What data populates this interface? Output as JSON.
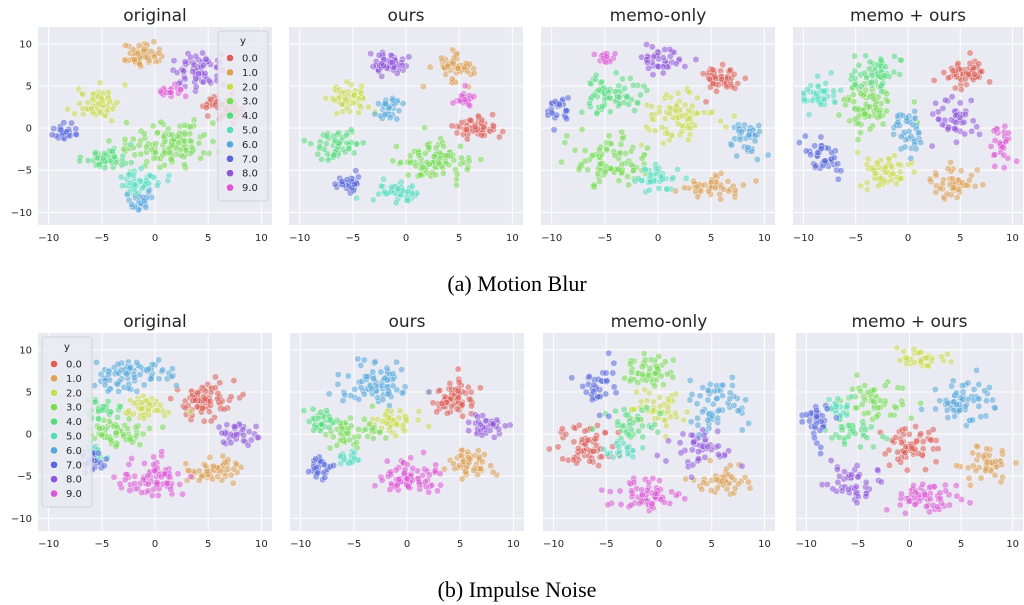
{
  "figure": {
    "captions": [
      "(a) Motion Blur",
      "(b) Impulse Noise"
    ]
  },
  "palette": [
    "#db5f57",
    "#dba157",
    "#c8db57",
    "#79db57",
    "#57db80",
    "#57dbbf",
    "#57a8db",
    "#5767db",
    "#8f57db",
    "#db57d6"
  ],
  "legend": {
    "title": "y",
    "labels": [
      "0.0",
      "1.0",
      "2.0",
      "3.0",
      "4.0",
      "5.0",
      "6.0",
      "7.0",
      "8.0",
      "9.0"
    ]
  },
  "chart_data": [
    {
      "type": "scatter",
      "row": "Motion Blur",
      "title": "original",
      "xticks": [
        -10,
        -5,
        0,
        5,
        10
      ],
      "yticks": [
        10,
        5,
        0,
        -5,
        -10
      ],
      "xlim": [
        -11,
        11
      ],
      "ylim": [
        -11.5,
        12
      ],
      "legend": "top-right",
      "grid": true,
      "clusters": [
        {
          "label": "0.0",
          "center": [
            6.5,
            2.5
          ],
          "spread": [
            1.6,
            1.4
          ],
          "n": 60
        },
        {
          "label": "1.0",
          "center": [
            -1.5,
            8.5
          ],
          "spread": [
            1.5,
            1.2
          ],
          "n": 60
        },
        {
          "label": "2.0",
          "center": [
            -5.5,
            3.0
          ],
          "spread": [
            1.8,
            1.6
          ],
          "n": 60
        },
        {
          "label": "3.0",
          "center": [
            1.5,
            -2.0
          ],
          "spread": [
            4.0,
            2.5
          ],
          "n": 110
        },
        {
          "label": "4.0",
          "center": [
            -4.5,
            -3.5
          ],
          "spread": [
            2.0,
            1.2
          ],
          "n": 45
        },
        {
          "label": "5.0",
          "center": [
            -1.5,
            -6.5
          ],
          "spread": [
            2.0,
            1.2
          ],
          "n": 45
        },
        {
          "label": "6.0",
          "center": [
            -1.5,
            -8.5
          ],
          "spread": [
            1.2,
            1.0
          ],
          "n": 25
        },
        {
          "label": "7.0",
          "center": [
            -8.5,
            -0.5
          ],
          "spread": [
            1.2,
            1.0
          ],
          "n": 25
        },
        {
          "label": "8.0",
          "center": [
            4.0,
            7.0
          ],
          "spread": [
            2.0,
            1.8
          ],
          "n": 60
        },
        {
          "label": "9.0",
          "center": [
            1.5,
            4.5
          ],
          "spread": [
            1.0,
            0.8
          ],
          "n": 20
        }
      ]
    },
    {
      "type": "scatter",
      "row": "Motion Blur",
      "title": "ours",
      "xticks": [
        -10,
        -5,
        0,
        5,
        10
      ],
      "yticks": [],
      "xlim": [
        -11,
        11
      ],
      "ylim": [
        -11.5,
        12
      ],
      "grid": true,
      "clusters": [
        {
          "label": "0.0",
          "center": [
            6.5,
            0.0
          ],
          "spread": [
            1.8,
            1.2
          ],
          "n": 55
        },
        {
          "label": "1.0",
          "center": [
            4.5,
            7.0
          ],
          "spread": [
            1.6,
            1.4
          ],
          "n": 55
        },
        {
          "label": "2.0",
          "center": [
            -5.5,
            3.5
          ],
          "spread": [
            1.6,
            1.4
          ],
          "n": 55
        },
        {
          "label": "3.0",
          "center": [
            2.5,
            -4.0
          ],
          "spread": [
            3.0,
            2.0
          ],
          "n": 90
        },
        {
          "label": "4.0",
          "center": [
            -6.5,
            -2.0
          ],
          "spread": [
            2.0,
            1.5
          ],
          "n": 50
        },
        {
          "label": "5.0",
          "center": [
            -1.0,
            -7.5
          ],
          "spread": [
            2.0,
            1.2
          ],
          "n": 45
        },
        {
          "label": "6.0",
          "center": [
            -1.5,
            2.5
          ],
          "spread": [
            1.2,
            1.2
          ],
          "n": 30
        },
        {
          "label": "7.0",
          "center": [
            -5.5,
            -6.5
          ],
          "spread": [
            1.2,
            1.0
          ],
          "n": 30
        },
        {
          "label": "8.0",
          "center": [
            -1.5,
            7.5
          ],
          "spread": [
            1.6,
            1.2
          ],
          "n": 55
        },
        {
          "label": "9.0",
          "center": [
            5.5,
            3.5
          ],
          "spread": [
            1.0,
            0.8
          ],
          "n": 20
        }
      ]
    },
    {
      "type": "scatter",
      "row": "Motion Blur",
      "title": "memo-only",
      "xticks": [
        -10,
        -5,
        0,
        5,
        10
      ],
      "yticks": [],
      "xlim": [
        -11,
        11
      ],
      "ylim": [
        -11.5,
        12
      ],
      "grid": true,
      "clusters": [
        {
          "label": "0.0",
          "center": [
            6.0,
            6.0
          ],
          "spread": [
            1.8,
            1.5
          ],
          "n": 50
        },
        {
          "label": "1.0",
          "center": [
            5.0,
            -7.0
          ],
          "spread": [
            2.5,
            1.2
          ],
          "n": 45
        },
        {
          "label": "2.0",
          "center": [
            2.0,
            1.5
          ],
          "spread": [
            3.0,
            2.5
          ],
          "n": 80
        },
        {
          "label": "3.0",
          "center": [
            -4.5,
            -4.0
          ],
          "spread": [
            3.0,
            2.5
          ],
          "n": 85
        },
        {
          "label": "4.0",
          "center": [
            -4.5,
            4.0
          ],
          "spread": [
            2.5,
            2.0
          ],
          "n": 65
        },
        {
          "label": "5.0",
          "center": [
            0.0,
            -6.0
          ],
          "spread": [
            2.0,
            1.5
          ],
          "n": 40
        },
        {
          "label": "6.0",
          "center": [
            8.5,
            -1.0
          ],
          "spread": [
            1.2,
            2.0
          ],
          "n": 40
        },
        {
          "label": "7.0",
          "center": [
            -9.5,
            2.5
          ],
          "spread": [
            1.0,
            1.5
          ],
          "n": 25
        },
        {
          "label": "8.0",
          "center": [
            0.5,
            8.0
          ],
          "spread": [
            1.8,
            1.5
          ],
          "n": 40
        },
        {
          "label": "9.0",
          "center": [
            -5.0,
            8.5
          ],
          "spread": [
            1.0,
            0.8
          ],
          "n": 15
        }
      ]
    },
    {
      "type": "scatter",
      "row": "Motion Blur",
      "title": "memo + ours",
      "xticks": [
        -10,
        -5,
        0,
        5,
        10
      ],
      "yticks": [],
      "xlim": [
        -11,
        11
      ],
      "ylim": [
        -11.5,
        12
      ],
      "grid": true,
      "clusters": [
        {
          "label": "0.0",
          "center": [
            5.5,
            6.5
          ],
          "spread": [
            2.0,
            1.5
          ],
          "n": 55
        },
        {
          "label": "1.0",
          "center": [
            4.5,
            -6.5
          ],
          "spread": [
            2.0,
            1.5
          ],
          "n": 45
        },
        {
          "label": "2.0",
          "center": [
            -2.5,
            -5.0
          ],
          "spread": [
            2.5,
            2.0
          ],
          "n": 60
        },
        {
          "label": "3.0",
          "center": [
            -4.0,
            2.5
          ],
          "spread": [
            2.5,
            3.0
          ],
          "n": 80
        },
        {
          "label": "4.0",
          "center": [
            -3.0,
            6.5
          ],
          "spread": [
            2.5,
            1.8
          ],
          "n": 55
        },
        {
          "label": "5.0",
          "center": [
            -8.5,
            4.0
          ],
          "spread": [
            1.5,
            2.0
          ],
          "n": 40
        },
        {
          "label": "6.0",
          "center": [
            0.0,
            -0.5
          ],
          "spread": [
            1.5,
            2.5
          ],
          "n": 40
        },
        {
          "label": "7.0",
          "center": [
            -8.0,
            -3.5
          ],
          "spread": [
            1.5,
            2.0
          ],
          "n": 40
        },
        {
          "label": "8.0",
          "center": [
            4.5,
            1.0
          ],
          "spread": [
            1.8,
            2.0
          ],
          "n": 45
        },
        {
          "label": "9.0",
          "center": [
            9.0,
            -2.0
          ],
          "spread": [
            1.2,
            2.0
          ],
          "n": 30
        }
      ]
    },
    {
      "type": "scatter",
      "row": "Impulse Noise",
      "title": "original",
      "xticks": [
        -10,
        -5,
        0,
        5,
        10
      ],
      "yticks": [
        10,
        5,
        0,
        -5,
        -10
      ],
      "xlim": [
        -11,
        11
      ],
      "ylim": [
        -11.5,
        12
      ],
      "legend": "top-left",
      "grid": true,
      "clusters": [
        {
          "label": "0.0",
          "center": [
            4.5,
            4.0
          ],
          "spread": [
            2.5,
            2.0
          ],
          "n": 80
        },
        {
          "label": "1.0",
          "center": [
            5.5,
            -4.5
          ],
          "spread": [
            2.0,
            1.5
          ],
          "n": 55
        },
        {
          "label": "2.0",
          "center": [
            -1.0,
            3.0
          ],
          "spread": [
            2.0,
            1.2
          ],
          "n": 45
        },
        {
          "label": "3.0",
          "center": [
            -3.5,
            0.0
          ],
          "spread": [
            2.5,
            1.5
          ],
          "n": 55
        },
        {
          "label": "4.0",
          "center": [
            -5.0,
            3.0
          ],
          "spread": [
            1.5,
            1.2
          ],
          "n": 30
        },
        {
          "label": "5.0",
          "center": [
            -5.5,
            -2.0
          ],
          "spread": [
            1.0,
            1.0
          ],
          "n": 20
        },
        {
          "label": "6.0",
          "center": [
            -2.0,
            7.0
          ],
          "spread": [
            3.0,
            1.8
          ],
          "n": 75
        },
        {
          "label": "7.0",
          "center": [
            -6.0,
            -3.0
          ],
          "spread": [
            1.2,
            1.2
          ],
          "n": 25
        },
        {
          "label": "8.0",
          "center": [
            7.5,
            0.0
          ],
          "spread": [
            1.5,
            1.2
          ],
          "n": 35
        },
        {
          "label": "9.0",
          "center": [
            -0.5,
            -5.0
          ],
          "spread": [
            2.5,
            2.0
          ],
          "n": 75
        }
      ]
    },
    {
      "type": "scatter",
      "row": "Impulse Noise",
      "title": "ours",
      "xticks": [
        -10,
        -5,
        0,
        5,
        10
      ],
      "yticks": [],
      "xlim": [
        -11,
        11
      ],
      "ylim": [
        -11.5,
        12
      ],
      "grid": true,
      "clusters": [
        {
          "label": "0.0",
          "center": [
            4.5,
            4.5
          ],
          "spread": [
            2.0,
            2.0
          ],
          "n": 70
        },
        {
          "label": "1.0",
          "center": [
            6.0,
            -3.5
          ],
          "spread": [
            2.0,
            1.5
          ],
          "n": 50
        },
        {
          "label": "2.0",
          "center": [
            -1.5,
            1.5
          ],
          "spread": [
            2.0,
            1.2
          ],
          "n": 45
        },
        {
          "label": "3.0",
          "center": [
            -5.0,
            0.0
          ],
          "spread": [
            2.5,
            1.5
          ],
          "n": 50
        },
        {
          "label": "4.0",
          "center": [
            -8.0,
            1.5
          ],
          "spread": [
            1.5,
            1.2
          ],
          "n": 30
        },
        {
          "label": "5.0",
          "center": [
            -5.5,
            -3.0
          ],
          "spread": [
            1.0,
            1.0
          ],
          "n": 20
        },
        {
          "label": "6.0",
          "center": [
            -3.0,
            6.0
          ],
          "spread": [
            3.0,
            2.0
          ],
          "n": 75
        },
        {
          "label": "7.0",
          "center": [
            -8.5,
            -4.0
          ],
          "spread": [
            1.2,
            1.2
          ],
          "n": 30
        },
        {
          "label": "8.0",
          "center": [
            7.5,
            1.0
          ],
          "spread": [
            1.5,
            1.2
          ],
          "n": 35
        },
        {
          "label": "9.0",
          "center": [
            0.0,
            -5.0
          ],
          "spread": [
            2.5,
            2.0
          ],
          "n": 75
        }
      ]
    },
    {
      "type": "scatter",
      "row": "Impulse Noise",
      "title": "memo-only",
      "xticks": [
        -10,
        -5,
        0,
        5,
        10
      ],
      "yticks": [],
      "xlim": [
        -11,
        11
      ],
      "ylim": [
        -11.5,
        12
      ],
      "grid": true,
      "clusters": [
        {
          "label": "0.0",
          "center": [
            -7.0,
            -1.5
          ],
          "spread": [
            2.5,
            2.5
          ],
          "n": 60
        },
        {
          "label": "1.0",
          "center": [
            6.0,
            -5.5
          ],
          "spread": [
            2.5,
            1.8
          ],
          "n": 45
        },
        {
          "label": "2.0",
          "center": [
            0.0,
            3.0
          ],
          "spread": [
            2.5,
            2.0
          ],
          "n": 45
        },
        {
          "label": "3.0",
          "center": [
            -1.0,
            7.5
          ],
          "spread": [
            2.5,
            2.0
          ],
          "n": 50
        },
        {
          "label": "4.0",
          "center": [
            -2.5,
            1.0
          ],
          "spread": [
            2.0,
            2.0
          ],
          "n": 35
        },
        {
          "label": "5.0",
          "center": [
            -3.5,
            -2.0
          ],
          "spread": [
            1.5,
            1.5
          ],
          "n": 20
        },
        {
          "label": "6.0",
          "center": [
            5.5,
            3.5
          ],
          "spread": [
            2.5,
            3.0
          ],
          "n": 60
        },
        {
          "label": "7.0",
          "center": [
            -6.0,
            5.5
          ],
          "spread": [
            1.5,
            2.0
          ],
          "n": 35
        },
        {
          "label": "8.0",
          "center": [
            3.5,
            -2.0
          ],
          "spread": [
            2.5,
            2.0
          ],
          "n": 45
        },
        {
          "label": "9.0",
          "center": [
            -1.0,
            -7.5
          ],
          "spread": [
            3.0,
            2.0
          ],
          "n": 60
        }
      ]
    },
    {
      "type": "scatter",
      "row": "Impulse Noise",
      "title": "memo + ours",
      "xticks": [
        -10,
        -5,
        0,
        5,
        10
      ],
      "yticks": [],
      "xlim": [
        -11,
        11
      ],
      "ylim": [
        -11.5,
        12
      ],
      "grid": true,
      "clusters": [
        {
          "label": "0.0",
          "center": [
            0.0,
            -1.5
          ],
          "spread": [
            2.5,
            2.0
          ],
          "n": 60
        },
        {
          "label": "1.0",
          "center": [
            7.5,
            -3.5
          ],
          "spread": [
            2.0,
            2.0
          ],
          "n": 45
        },
        {
          "label": "2.0",
          "center": [
            1.0,
            9.0
          ],
          "spread": [
            2.0,
            1.2
          ],
          "n": 35
        },
        {
          "label": "3.0",
          "center": [
            -3.0,
            4.0
          ],
          "spread": [
            2.5,
            2.0
          ],
          "n": 50
        },
        {
          "label": "4.0",
          "center": [
            -5.5,
            0.5
          ],
          "spread": [
            2.0,
            1.8
          ],
          "n": 35
        },
        {
          "label": "5.0",
          "center": [
            -7.0,
            3.5
          ],
          "spread": [
            1.5,
            1.5
          ],
          "n": 20
        },
        {
          "label": "6.0",
          "center": [
            5.5,
            3.5
          ],
          "spread": [
            2.5,
            2.5
          ],
          "n": 65
        },
        {
          "label": "7.0",
          "center": [
            -9.0,
            2.0
          ],
          "spread": [
            1.2,
            2.5
          ],
          "n": 35
        },
        {
          "label": "8.0",
          "center": [
            -5.5,
            -6.0
          ],
          "spread": [
            2.5,
            1.8
          ],
          "n": 45
        },
        {
          "label": "9.0",
          "center": [
            2.0,
            -7.5
          ],
          "spread": [
            3.0,
            2.0
          ],
          "n": 55
        }
      ]
    }
  ]
}
